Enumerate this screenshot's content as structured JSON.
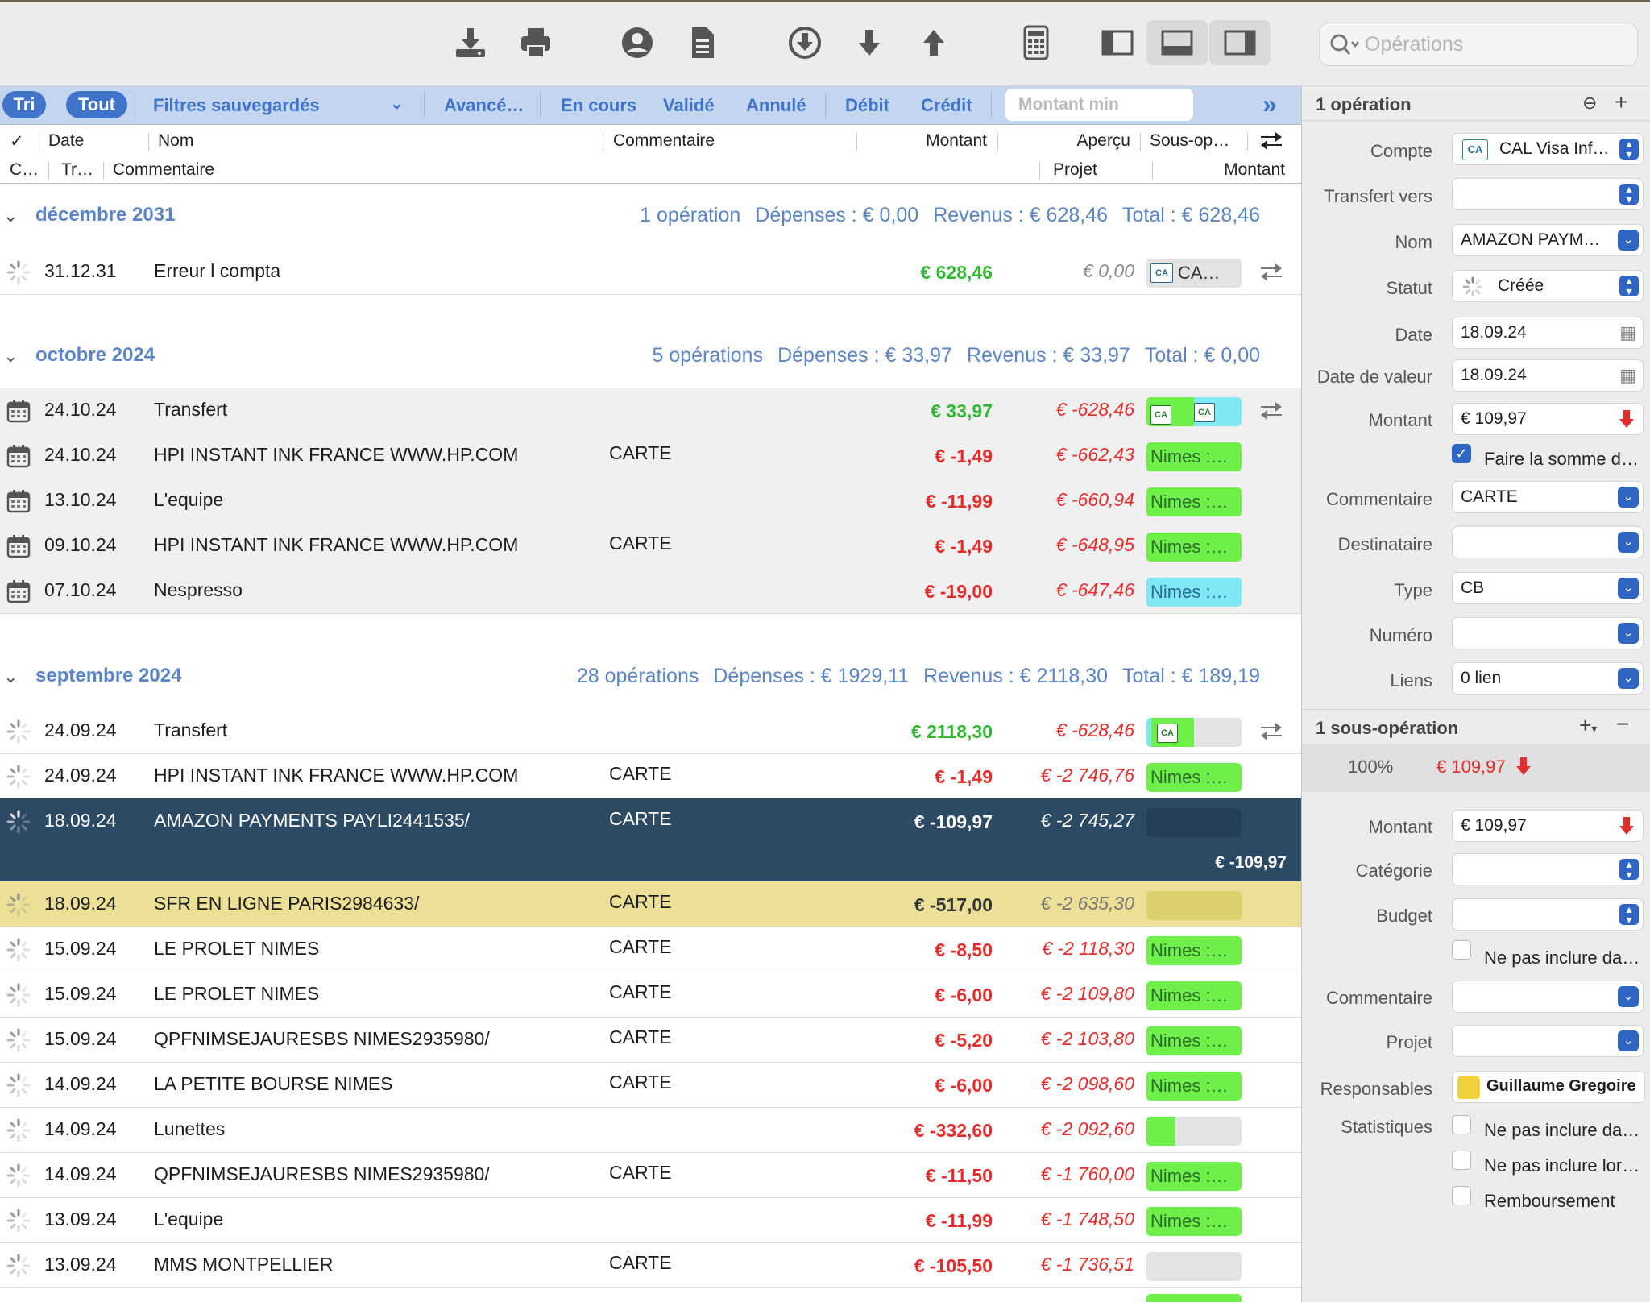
{
  "toolbar": {
    "icons": [
      "download-icon",
      "print-icon",
      "user-icon",
      "document-icon",
      "circle-download-icon",
      "arrow-down-icon",
      "arrow-up-icon",
      "calculator-icon",
      "layout-left-icon",
      "layout-bottom-icon",
      "layout-right-icon"
    ],
    "search_placeholder": "Opérations"
  },
  "filters": {
    "tri": "Tri",
    "tout": "Tout",
    "saved": "Filtres sauvegardés",
    "advanced": "Avancé…",
    "en_cours": "En cours",
    "valide": "Validé",
    "annule": "Annulé",
    "debit": "Débit",
    "credit": "Crédit",
    "montant_min_placeholder": "Montant min"
  },
  "columns": {
    "row1": {
      "check": "✓",
      "date": "Date",
      "nom": "Nom",
      "commentaire": "Commentaire",
      "montant": "Montant",
      "apercu": "Aperçu",
      "sousop": "Sous-op…"
    },
    "row2": {
      "c": "C…",
      "tr": "Tr…",
      "commentaire": "Commentaire",
      "projet": "Projet",
      "montant": "Montant"
    }
  },
  "groups": [
    {
      "title": "décembre 2031",
      "count": "1 opération",
      "depenses": "Dépenses : € 0,00",
      "revenus": "Revenus : € 628,46",
      "total": "Total : € 628,46"
    },
    {
      "title": "octobre 2024",
      "count": "5 opérations",
      "depenses": "Dépenses : € 33,97",
      "revenus": "Revenus : € 33,97",
      "total": "Total : € 0,00"
    },
    {
      "title": "septembre 2024",
      "count": "28 opérations",
      "depenses": "Dépenses : € 1929,11",
      "revenus": "Revenus : € 2118,30",
      "total": "Total : € 189,19"
    }
  ],
  "rows": [
    {
      "date": "31.12.31",
      "nom": "Erreur l compta",
      "com": "",
      "montant": "€ 628,46",
      "solde": "€ 0,00",
      "tag": "CA…"
    },
    {
      "date": "24.10.24",
      "nom": "Transfert",
      "com": "",
      "montant": "€ 33,97",
      "solde": "€ -628,46",
      "tag": ""
    },
    {
      "date": "24.10.24",
      "nom": "HPI INSTANT INK FRANCE WWW.HP.COM",
      "com": "CARTE",
      "montant": "€ -1,49",
      "solde": "€ -662,43",
      "tag": "Nimes :…"
    },
    {
      "date": "13.10.24",
      "nom": "L'equipe",
      "com": "",
      "montant": "€ -11,99",
      "solde": "€ -660,94",
      "tag": "Nimes :…"
    },
    {
      "date": "09.10.24",
      "nom": "HPI INSTANT INK FRANCE WWW.HP.COM",
      "com": "CARTE",
      "montant": "€ -1,49",
      "solde": "€ -648,95",
      "tag": "Nimes :…"
    },
    {
      "date": "07.10.24",
      "nom": "Nespresso",
      "com": "",
      "montant": "€ -19,00",
      "solde": "€ -647,46",
      "tag": "Nimes :…"
    },
    {
      "date": "24.09.24",
      "nom": "Transfert",
      "com": "",
      "montant": "€ 2118,30",
      "solde": "€ -628,46",
      "tag": ""
    },
    {
      "date": "24.09.24",
      "nom": "HPI INSTANT INK FRANCE WWW.HP.COM",
      "com": "CARTE",
      "montant": "€ -1,49",
      "solde": "€ -2 746,76",
      "tag": "Nimes :…"
    },
    {
      "date": "18.09.24",
      "nom": "AMAZON PAYMENTS PAYLI2441535/",
      "com": "CARTE",
      "montant": "€ -109,97",
      "solde": "€ -2 745,27",
      "tag": "",
      "sub_montant": "€ -109,97"
    },
    {
      "date": "18.09.24",
      "nom": "SFR EN LIGNE PARIS2984633/",
      "com": "CARTE",
      "montant": "€ -517,00",
      "solde": "€ -2 635,30",
      "tag": ""
    },
    {
      "date": "15.09.24",
      "nom": "LE PROLET NIMES",
      "com": "CARTE",
      "montant": "€ -8,50",
      "solde": "€ -2 118,30",
      "tag": "Nimes :…"
    },
    {
      "date": "15.09.24",
      "nom": "LE PROLET NIMES",
      "com": "CARTE",
      "montant": "€ -6,00",
      "solde": "€ -2 109,80",
      "tag": "Nimes :…"
    },
    {
      "date": "15.09.24",
      "nom": "QPFNIMSEJAURESBS NIMES2935980/",
      "com": "CARTE",
      "montant": "€ -5,20",
      "solde": "€ -2 103,80",
      "tag": "Nimes :…"
    },
    {
      "date": "14.09.24",
      "nom": "LA PETITE BOURSE NIMES",
      "com": "CARTE",
      "montant": "€ -6,00",
      "solde": "€ -2 098,60",
      "tag": "Nimes :…"
    },
    {
      "date": "14.09.24",
      "nom": "Lunettes",
      "com": "",
      "montant": "€ -332,60",
      "solde": "€ -2 092,60",
      "tag": ""
    },
    {
      "date": "14.09.24",
      "nom": "QPFNIMSEJAURESBS NIMES2935980/",
      "com": "CARTE",
      "montant": "€ -11,50",
      "solde": "€ -1 760,00",
      "tag": "Nimes :…"
    },
    {
      "date": "13.09.24",
      "nom": "L'equipe",
      "com": "",
      "montant": "€ -11,99",
      "solde": "€ -1 748,50",
      "tag": "Nimes :…"
    },
    {
      "date": "13.09.24",
      "nom": "MMS MONTPELLIER",
      "com": "CARTE",
      "montant": "€ -105,50",
      "solde": "€ -1 736,51",
      "tag": ""
    }
  ],
  "panel": {
    "header": "1 opération",
    "labels": {
      "compte": "Compte",
      "transfert": "Transfert vers",
      "nom": "Nom",
      "statut": "Statut",
      "date": "Date",
      "date_valeur": "Date de valeur",
      "montant": "Montant",
      "commentaire": "Commentaire",
      "destinataire": "Destinataire",
      "type": "Type",
      "numero": "Numéro",
      "liens": "Liens"
    },
    "values": {
      "compte": "CAL Visa Inf…",
      "transfert": "",
      "nom": "AMAZON PAYM…",
      "statut": "Créée",
      "date": "18.09.24",
      "date_valeur": "18.09.24",
      "montant": "€ 109,97",
      "faire_somme": "Faire la somme d…",
      "commentaire": "CARTE",
      "destinataire": "",
      "type": "CB",
      "numero": "",
      "liens": "0 lien"
    },
    "sub_header": "1 sous-opération",
    "sub_percent": "100%",
    "sub_amount": "€ 109,97",
    "sub_labels": {
      "montant": "Montant",
      "categorie": "Catégorie",
      "budget": "Budget",
      "commentaire": "Commentaire",
      "projet": "Projet",
      "responsables": "Responsables",
      "statistiques": "Statistiques"
    },
    "sub_values": {
      "montant": "€ 109,97",
      "categorie": "",
      "budget": "",
      "ne_pas_inclure": "Ne pas inclure da…",
      "commentaire": "",
      "projet": "",
      "responsable": "Guillaume Gregoire",
      "stat1": "Ne pas inclure da…",
      "stat2": "Ne pas inclure lor…",
      "remboursement": "Remboursement"
    }
  },
  "colors": {
    "accent": "#3f74c8",
    "income": "#33b833",
    "expense": "#e62b2b",
    "selected_row": "#2d4a65",
    "highlight_row": "#ebe095",
    "tag_green": "#6fef4a",
    "tag_cyan": "#7fe8f4"
  }
}
